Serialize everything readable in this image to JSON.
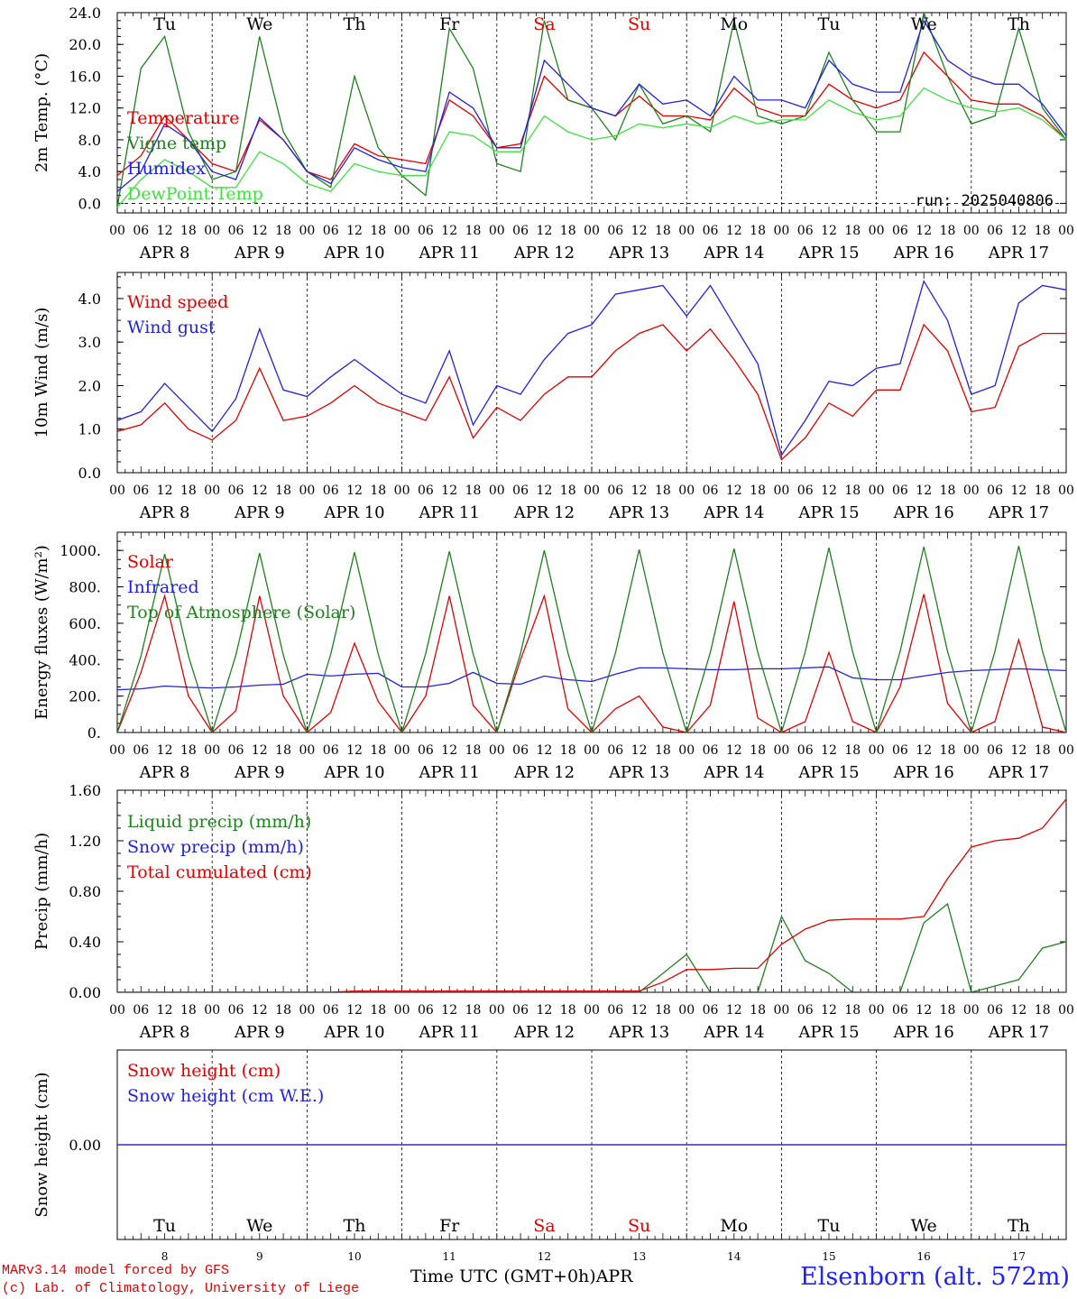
{
  "days": [
    {
      "dow": "Tu",
      "date": "APR  8",
      "num": "8",
      "weekend": false
    },
    {
      "dow": "We",
      "date": "APR  9",
      "num": "9",
      "weekend": false
    },
    {
      "dow": "Th",
      "date": "APR 10",
      "num": "10",
      "weekend": false
    },
    {
      "dow": "Fr",
      "date": "APR 11",
      "num": "11",
      "weekend": false
    },
    {
      "dow": "Sa",
      "date": "APR 12",
      "num": "12",
      "weekend": true
    },
    {
      "dow": "Su",
      "date": "APR 13",
      "num": "13",
      "weekend": true
    },
    {
      "dow": "Mo",
      "date": "APR 14",
      "num": "14",
      "weekend": false
    },
    {
      "dow": "Tu",
      "date": "APR 15",
      "num": "15",
      "weekend": false
    },
    {
      "dow": "We",
      "date": "APR 16",
      "num": "16",
      "weekend": false
    },
    {
      "dow": "Th",
      "date": "APR 17",
      "num": "17",
      "weekend": false
    }
  ],
  "hour_ticks": [
    "00",
    "06",
    "12",
    "18"
  ],
  "colors": {
    "red": "#e00000",
    "green": "#208020",
    "blue": "#2020e0",
    "lightgreen": "#40e040",
    "weekend": "#e00000"
  },
  "footer": {
    "model": "MARv3.14 model forced by GFS",
    "credit": "(c) Lab. of Climatology, University of Liege",
    "time_label": "Time UTC (GMT+0h)",
    "month": "APR",
    "station": "Elsenborn (alt. 572m)"
  },
  "chart_data": [
    {
      "type": "line",
      "ylabel": "2m Temp. (°C)",
      "ylim": [
        -1.2,
        24.0
      ],
      "yticks": [
        "0.0",
        "4.0",
        "8.0",
        "12.0",
        "16.0",
        "20.0",
        "24.0"
      ],
      "zero_dashed": true,
      "annotation": "run: 2025040806",
      "x": [
        0,
        6,
        12,
        18,
        24,
        30,
        36,
        42,
        48,
        54,
        60,
        66,
        72,
        78,
        84,
        90,
        96,
        102,
        108,
        114,
        120,
        126,
        132,
        138,
        144,
        150,
        156,
        162,
        168,
        174,
        180,
        186,
        192,
        198,
        204,
        210,
        216,
        222,
        228,
        234,
        240
      ],
      "series": [
        {
          "name": "Temperature",
          "color": "red",
          "values": [
            3.5,
            6,
            11,
            8,
            5,
            4,
            10.5,
            8,
            4,
            3,
            7.5,
            6,
            5.5,
            5,
            13,
            11,
            7,
            7.5,
            16,
            13,
            12,
            11,
            13.5,
            11,
            11,
            10.5,
            14.5,
            12,
            11,
            11,
            15,
            13,
            12,
            13,
            19,
            16,
            13,
            12.5,
            12.5,
            11,
            8
          ]
        },
        {
          "name": "Vigne temp",
          "color": "green",
          "values": [
            -0.5,
            17,
            21,
            9,
            3,
            4,
            21,
            9,
            4,
            2,
            16,
            7,
            3.5,
            1,
            22,
            17,
            5,
            4,
            23,
            13,
            12,
            8,
            15,
            10,
            11,
            9,
            23,
            11,
            10,
            11,
            19,
            13,
            9,
            9,
            24,
            16,
            10,
            11,
            22,
            12,
            8
          ]
        },
        {
          "name": "Humidex",
          "color": "blue",
          "values": [
            1.5,
            4,
            10,
            8,
            4,
            3,
            10.8,
            8,
            4,
            2.5,
            7,
            5.5,
            4.5,
            4,
            14,
            12,
            7,
            7,
            18,
            15,
            12,
            11,
            15,
            12.5,
            13,
            11,
            16,
            13,
            13,
            12,
            18,
            15,
            14,
            14,
            23,
            18,
            16,
            15,
            15,
            12.5,
            8.5
          ]
        },
        {
          "name": "DewPoint Temp",
          "color": "lightgreen",
          "values": [
            -0.5,
            3,
            5.5,
            4,
            2,
            2,
            6.5,
            5,
            2.5,
            1.5,
            5,
            4,
            3.5,
            3.5,
            9,
            8.5,
            6.5,
            6.5,
            11,
            9,
            8,
            8.5,
            10,
            9.5,
            10,
            9.5,
            11,
            10,
            10.5,
            10.5,
            13,
            11.5,
            10.5,
            11,
            14.5,
            13,
            12,
            11.5,
            12,
            10.5,
            8
          ]
        }
      ]
    },
    {
      "type": "line",
      "ylabel": "10m Wind (m/s)",
      "ylim": [
        0.0,
        4.6
      ],
      "yticks": [
        "0.0",
        "1.0",
        "2.0",
        "3.0",
        "4.0"
      ],
      "x": [
        0,
        6,
        12,
        18,
        24,
        30,
        36,
        42,
        48,
        54,
        60,
        66,
        72,
        78,
        84,
        90,
        96,
        102,
        108,
        114,
        120,
        126,
        132,
        138,
        144,
        150,
        156,
        162,
        168,
        174,
        180,
        186,
        192,
        198,
        204,
        210,
        216,
        222,
        228,
        234,
        240
      ],
      "series": [
        {
          "name": "Wind speed",
          "color": "red",
          "values": [
            0.95,
            1.1,
            1.6,
            1.0,
            0.75,
            1.2,
            2.4,
            1.2,
            1.3,
            1.6,
            2.0,
            1.6,
            1.4,
            1.2,
            2.2,
            0.8,
            1.5,
            1.2,
            1.8,
            2.2,
            2.2,
            2.8,
            3.2,
            3.4,
            2.8,
            3.3,
            2.6,
            1.8,
            0.3,
            0.8,
            1.6,
            1.3,
            1.9,
            1.9,
            3.4,
            2.8,
            1.4,
            1.5,
            2.9,
            3.2,
            3.2
          ]
        },
        {
          "name": "Wind gust",
          "color": "blue",
          "values": [
            1.2,
            1.4,
            2.05,
            1.5,
            0.95,
            1.7,
            3.3,
            1.9,
            1.75,
            2.2,
            2.6,
            2.2,
            1.8,
            1.6,
            2.8,
            1.1,
            2.0,
            1.8,
            2.6,
            3.2,
            3.4,
            4.1,
            4.2,
            4.3,
            3.6,
            4.3,
            3.4,
            2.5,
            0.4,
            1.2,
            2.1,
            2.0,
            2.4,
            2.5,
            4.4,
            3.5,
            1.8,
            2.0,
            3.9,
            4.3,
            4.2
          ]
        }
      ]
    },
    {
      "type": "line",
      "ylabel": "Energy fluxes (W/m²)",
      "ylim": [
        0,
        1100
      ],
      "yticks": [
        "0.",
        "200.",
        "400.",
        "600.",
        "800.",
        "1000."
      ],
      "x": [
        0,
        6,
        12,
        18,
        24,
        30,
        36,
        42,
        48,
        54,
        60,
        66,
        72,
        78,
        84,
        90,
        96,
        102,
        108,
        114,
        120,
        126,
        132,
        138,
        144,
        150,
        156,
        162,
        168,
        174,
        180,
        186,
        192,
        198,
        204,
        210,
        216,
        222,
        228,
        234,
        240
      ],
      "series": [
        {
          "name": "Solar",
          "color": "red",
          "values": [
            0,
            330,
            750,
            200,
            0,
            120,
            750,
            200,
            0,
            110,
            490,
            170,
            0,
            200,
            750,
            150,
            0,
            400,
            750,
            130,
            0,
            130,
            200,
            30,
            0,
            150,
            720,
            80,
            0,
            60,
            440,
            60,
            0,
            250,
            760,
            160,
            0,
            60,
            510,
            30,
            0
          ]
        },
        {
          "name": "Infrared",
          "color": "blue",
          "values": [
            235,
            240,
            255,
            248,
            245,
            250,
            260,
            265,
            320,
            310,
            320,
            325,
            250,
            250,
            270,
            330,
            270,
            265,
            310,
            290,
            280,
            320,
            355,
            355,
            350,
            345,
            345,
            350,
            350,
            355,
            360,
            300,
            290,
            290,
            310,
            330,
            340,
            345,
            350,
            345,
            340
          ]
        },
        {
          "name": "Top of Atmosphere (Solar)",
          "color": "green",
          "values": [
            0,
            420,
            980,
            420,
            0,
            425,
            985,
            425,
            0,
            430,
            990,
            430,
            0,
            432,
            995,
            432,
            0,
            435,
            1000,
            435,
            0,
            437,
            1005,
            437,
            0,
            440,
            1010,
            440,
            0,
            442,
            1015,
            442,
            0,
            445,
            1020,
            445,
            0,
            447,
            1025,
            447,
            0
          ]
        }
      ]
    },
    {
      "type": "line",
      "ylabel": "Precip (mm/h)",
      "ylim": [
        0.0,
        1.6
      ],
      "yticks": [
        "0.00",
        "0.40",
        "0.80",
        "1.20",
        "1.60"
      ],
      "x": [
        0,
        6,
        12,
        18,
        24,
        30,
        36,
        42,
        48,
        54,
        60,
        66,
        72,
        78,
        84,
        90,
        96,
        102,
        108,
        114,
        120,
        126,
        132,
        138,
        144,
        150,
        156,
        162,
        168,
        174,
        180,
        186,
        192,
        198,
        204,
        210,
        216,
        222,
        228,
        234,
        240
      ],
      "series": [
        {
          "name": "Liquid precip (mm/h)",
          "color": "green",
          "values": [
            0,
            0,
            0,
            0,
            0,
            0,
            0,
            0,
            0,
            0,
            0,
            0,
            0,
            0,
            0,
            0,
            0,
            0,
            0,
            0,
            0,
            0,
            0,
            0.15,
            0.3,
            0,
            0,
            0,
            0.6,
            0.25,
            0.15,
            0,
            0,
            0,
            0.55,
            0.7,
            0,
            0.05,
            0.1,
            0.35,
            0.4
          ]
        },
        {
          "name": "Snow precip (mm/h)",
          "color": "blue",
          "values": [
            0,
            0,
            0,
            0,
            0,
            0,
            0,
            0,
            0,
            0,
            0,
            0,
            0,
            0,
            0,
            0,
            0,
            0,
            0,
            0,
            0,
            0,
            0,
            0,
            0,
            0,
            0,
            0,
            0,
            0,
            0,
            0,
            0,
            0,
            0,
            0,
            0,
            0,
            0,
            0,
            0
          ]
        },
        {
          "name": "Total cumulated (cm)",
          "color": "red",
          "values": [
            0,
            0,
            0,
            0,
            0,
            0,
            0,
            0,
            0,
            0,
            0.01,
            0.01,
            0.01,
            0.01,
            0.01,
            0.01,
            0.01,
            0.01,
            0.01,
            0.01,
            0.01,
            0.01,
            0.01,
            0.08,
            0.18,
            0.18,
            0.19,
            0.19,
            0.38,
            0.5,
            0.57,
            0.58,
            0.58,
            0.58,
            0.6,
            0.9,
            1.15,
            1.2,
            1.22,
            1.3,
            1.53
          ]
        }
      ]
    },
    {
      "type": "line",
      "ylabel": "Snow height (cm)",
      "ylim": [
        -1.0,
        1.0
      ],
      "yticks": [
        "0.00"
      ],
      "x": [
        0,
        240
      ],
      "series": [
        {
          "name": "Snow height (cm)",
          "color": "red",
          "values": [
            0,
            0
          ]
        },
        {
          "name": "Snow height (cm W.E.)",
          "color": "blue",
          "values": [
            0,
            0
          ]
        }
      ]
    }
  ]
}
